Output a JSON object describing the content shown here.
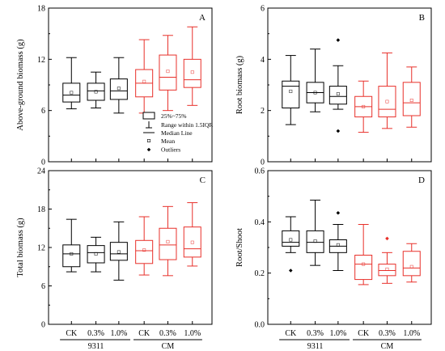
{
  "chart_data": [
    {
      "type": "box",
      "panel_label": "A",
      "ylabel": "Above-ground biomass (g)",
      "ylim": [
        0,
        18
      ],
      "yticks": [
        "0",
        "6",
        "12",
        "18"
      ],
      "categories": [
        "CK",
        "0.3%",
        "1.0%",
        "CK",
        "0.3%",
        "1.0%"
      ],
      "groups": [
        {
          "label": "9311",
          "color": "#000000"
        },
        {
          "label": "CM",
          "color": "#e8302a"
        }
      ],
      "boxes": [
        {
          "whisker_low": 6.2,
          "q1": 7.0,
          "median": 7.8,
          "q3": 9.2,
          "whisker_high": 12.2,
          "mean": 8.1,
          "outliers": []
        },
        {
          "whisker_low": 6.3,
          "q1": 7.2,
          "median": 8.3,
          "q3": 9.2,
          "whisker_high": 10.5,
          "mean": 8.2,
          "outliers": []
        },
        {
          "whisker_low": 5.7,
          "q1": 7.3,
          "median": 8.3,
          "q3": 9.7,
          "whisker_high": 12.2,
          "mean": 8.6,
          "outliers": []
        },
        {
          "whisker_low": 5.7,
          "q1": 7.6,
          "median": 9.2,
          "q3": 10.8,
          "whisker_high": 14.3,
          "mean": 9.4,
          "outliers": []
        },
        {
          "whisker_low": 6.0,
          "q1": 8.4,
          "median": 9.9,
          "q3": 12.5,
          "whisker_high": 14.8,
          "mean": 10.6,
          "outliers": []
        },
        {
          "whisker_low": 6.6,
          "q1": 8.7,
          "median": 9.6,
          "q3": 12.0,
          "whisker_high": 15.8,
          "mean": 10.5,
          "outliers": []
        }
      ],
      "legend": {
        "box_label": "25%~75%",
        "whisker_label": "Range within 1.5IQR",
        "median_label": "Median Line",
        "mean_label": "Mean",
        "outlier_label": "Outliers"
      }
    },
    {
      "type": "box",
      "panel_label": "B",
      "ylabel": "Root biomass (g)",
      "ylim": [
        0,
        6
      ],
      "yticks": [
        "0",
        "2",
        "4",
        "6"
      ],
      "categories": [
        "CK",
        "0.3%",
        "1.0%",
        "CK",
        "0.3%",
        "1.0%"
      ],
      "groups": [
        {
          "label": "9311",
          "color": "#000000"
        },
        {
          "label": "CM",
          "color": "#e8302a"
        }
      ],
      "boxes": [
        {
          "whisker_low": 1.45,
          "q1": 2.1,
          "median": 2.95,
          "q3": 3.15,
          "whisker_high": 4.15,
          "mean": 2.75,
          "outliers": []
        },
        {
          "whisker_low": 1.95,
          "q1": 2.3,
          "median": 2.7,
          "q3": 3.1,
          "whisker_high": 4.4,
          "mean": 2.7,
          "outliers": []
        },
        {
          "whisker_low": 2.05,
          "q1": 2.25,
          "median": 2.55,
          "q3": 2.95,
          "whisker_high": 3.75,
          "mean": 2.65,
          "outliers": [
            4.75,
            1.2
          ]
        },
        {
          "whisker_low": 1.15,
          "q1": 1.75,
          "median": 2.15,
          "q3": 2.55,
          "whisker_high": 3.15,
          "mean": 2.15,
          "outliers": []
        },
        {
          "whisker_low": 1.3,
          "q1": 1.75,
          "median": 2.05,
          "q3": 2.95,
          "whisker_high": 4.25,
          "mean": 2.35,
          "outliers": []
        },
        {
          "whisker_low": 1.35,
          "q1": 1.8,
          "median": 2.3,
          "q3": 3.1,
          "whisker_high": 3.7,
          "mean": 2.4,
          "outliers": []
        }
      ]
    },
    {
      "type": "box",
      "panel_label": "C",
      "ylabel": "Total biomass (g)",
      "ylim": [
        0,
        24
      ],
      "yticks": [
        "0",
        "6",
        "12",
        "18",
        "24"
      ],
      "categories": [
        "CK",
        "0.3%",
        "1.0%",
        "CK",
        "0.3%",
        "1.0%"
      ],
      "xtick_labels": [
        "CK",
        "0.3%",
        "1.0%",
        "CK",
        "0.3%",
        "1.0%"
      ],
      "groups": [
        {
          "label": "9311",
          "color": "#000000"
        },
        {
          "label": "CM",
          "color": "#e8302a"
        }
      ],
      "boxes": [
        {
          "whisker_low": 8.2,
          "q1": 9.0,
          "median": 11.0,
          "q3": 12.4,
          "whisker_high": 16.4,
          "mean": 11.0,
          "outliers": []
        },
        {
          "whisker_low": 8.2,
          "q1": 9.6,
          "median": 11.2,
          "q3": 12.3,
          "whisker_high": 13.6,
          "mean": 11.0,
          "outliers": []
        },
        {
          "whisker_low": 6.9,
          "q1": 10.0,
          "median": 11.0,
          "q3": 12.8,
          "whisker_high": 16.0,
          "mean": 11.3,
          "outliers": []
        },
        {
          "whisker_low": 7.7,
          "q1": 9.5,
          "median": 11.5,
          "q3": 13.1,
          "whisker_high": 16.8,
          "mean": 11.6,
          "outliers": []
        },
        {
          "whisker_low": 7.6,
          "q1": 10.1,
          "median": 12.4,
          "q3": 15.0,
          "whisker_high": 18.4,
          "mean": 12.9,
          "outliers": []
        },
        {
          "whisker_low": 9.1,
          "q1": 10.5,
          "median": 11.8,
          "q3": 15.2,
          "whisker_high": 19.0,
          "mean": 12.8,
          "outliers": []
        }
      ]
    },
    {
      "type": "box",
      "panel_label": "D",
      "ylabel": "Root/Shoot",
      "ylim": [
        0,
        0.6
      ],
      "yticks": [
        "0.0",
        "0.2",
        "0.4",
        "0.6"
      ],
      "categories": [
        "CK",
        "0.3%",
        "1.0%",
        "CK",
        "0.3%",
        "1.0%"
      ],
      "xtick_labels": [
        "CK",
        "0.3%",
        "1.0%",
        "CK",
        "0.3%",
        "1.0%"
      ],
      "groups": [
        {
          "label": "9311",
          "color": "#000000"
        },
        {
          "label": "CM",
          "color": "#e8302a"
        }
      ],
      "boxes": [
        {
          "whisker_low": 0.28,
          "q1": 0.305,
          "median": 0.32,
          "q3": 0.365,
          "whisker_high": 0.42,
          "mean": 0.33,
          "outliers": [
            0.21
          ]
        },
        {
          "whisker_low": 0.23,
          "q1": 0.28,
          "median": 0.32,
          "q3": 0.365,
          "whisker_high": 0.485,
          "mean": 0.325,
          "outliers": []
        },
        {
          "whisker_low": 0.21,
          "q1": 0.28,
          "median": 0.305,
          "q3": 0.33,
          "whisker_high": 0.39,
          "mean": 0.31,
          "outliers": [
            0.435
          ]
        },
        {
          "whisker_low": 0.155,
          "q1": 0.175,
          "median": 0.235,
          "q3": 0.27,
          "whisker_high": 0.39,
          "mean": 0.235,
          "outliers": []
        },
        {
          "whisker_low": 0.16,
          "q1": 0.19,
          "median": 0.21,
          "q3": 0.235,
          "whisker_high": 0.28,
          "mean": 0.215,
          "outliers": [
            0.335
          ]
        },
        {
          "whisker_low": 0.165,
          "q1": 0.19,
          "median": 0.22,
          "q3": 0.285,
          "whisker_high": 0.315,
          "mean": 0.225,
          "outliers": []
        }
      ]
    }
  ]
}
